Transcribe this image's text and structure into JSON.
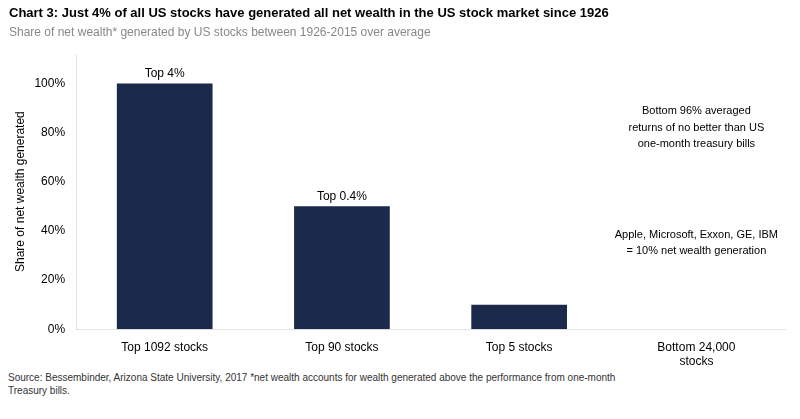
{
  "chart_data": {
    "type": "bar",
    "title": "Chart 3: Just 4% of all US stocks have generated all net wealth in the US stock market since 1926",
    "subtitle": "Share of net wealth* generated by US stocks between 1926-2015 over average",
    "categories": [
      "Top 1092 stocks",
      "Top 90 stocks",
      "Top 5 stocks",
      "Bottom 24,000\nstocks"
    ],
    "values": [
      100,
      50,
      10,
      0
    ],
    "color": "#1B2A4A",
    "ylabel": "Share of net wealth generated",
    "ylim": [
      0,
      112
    ],
    "yticks": [
      {
        "value": 0,
        "label": "0%"
      },
      {
        "value": 20,
        "label": "20%"
      },
      {
        "value": 40,
        "label": "40%"
      },
      {
        "value": 60,
        "label": "60%"
      },
      {
        "value": 80,
        "label": "80%"
      },
      {
        "value": 100,
        "label": "100%"
      }
    ],
    "grid": false,
    "annotations": [
      {
        "text": "Top 4%",
        "x": "Top 1092 stocks"
      },
      {
        "text": "Top 0.4%",
        "x": "Top 90 stocks"
      },
      {
        "text": "Bottom 96% averaged\nreturns of no better than US\none-month treasury bills",
        "x": "Bottom 24,000\nstocks",
        "y": 82
      },
      {
        "text": "Apple, Microsoft, Exxon, GE, IBM\n= 10% net wealth generation",
        "x": "Bottom 24,000\nstocks",
        "y": 35
      }
    ],
    "source": "Source: Bessembinder, Arizona State University, 2017 *net wealth accounts for wealth generated above the performance  from one-month\nTreasury bills."
  }
}
